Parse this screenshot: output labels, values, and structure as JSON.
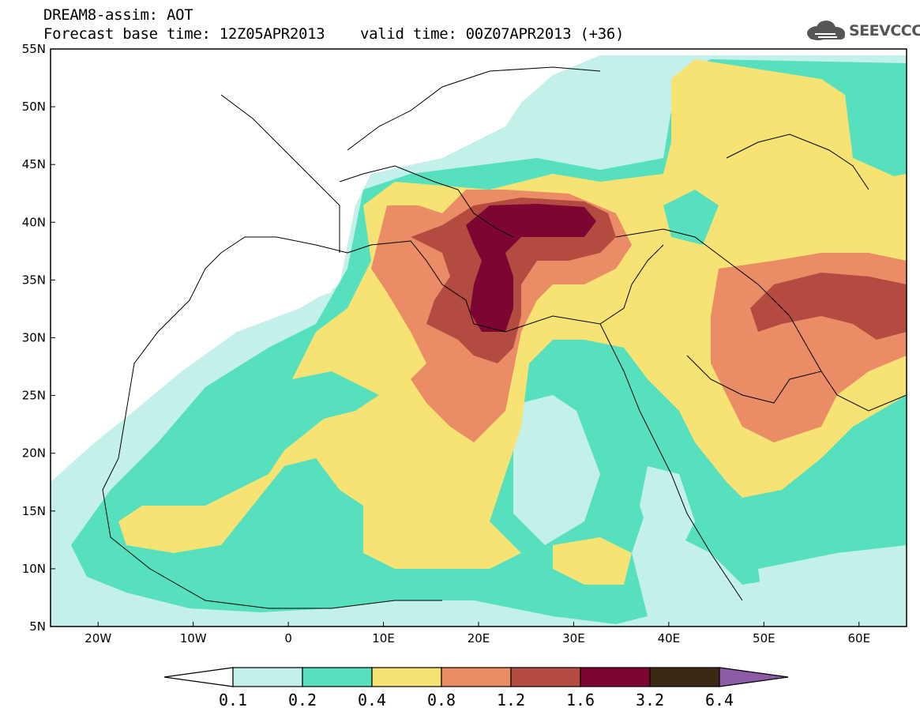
{
  "header": {
    "title_line1": "DREAM8-assim: AOT",
    "title_line2": "Forecast base time: 12Z05APR2013    valid time: 00Z07APR2013 (+36)"
  },
  "logo": {
    "text": "SEEVCCC",
    "icon": "cloud-icon"
  },
  "map": {
    "lon_ticks": [
      "20W",
      "10W",
      "0",
      "10E",
      "20E",
      "30E",
      "40E",
      "50E",
      "60E"
    ],
    "lat_ticks": [
      "55N",
      "50N",
      "45N",
      "40N",
      "35N",
      "30N",
      "25N",
      "20N",
      "15N",
      "10N",
      "5N"
    ],
    "lon_range": [
      -25,
      65
    ],
    "lat_range": [
      5,
      55
    ],
    "field": "AOT"
  },
  "legend": {
    "labels": [
      "0.1",
      "0.2",
      "0.4",
      "0.8",
      "1.2",
      "1.6",
      "3.2",
      "6.4"
    ],
    "colors": {
      "below": "#ffffff",
      "c1": "#c4f0ea",
      "c2": "#56e0bd",
      "c3": "#f7e374",
      "c4": "#ea8c66",
      "c5": "#b34b40",
      "c6": "#7c0532",
      "c7": "#3c2815",
      "above": "#8c5ca6"
    }
  }
}
